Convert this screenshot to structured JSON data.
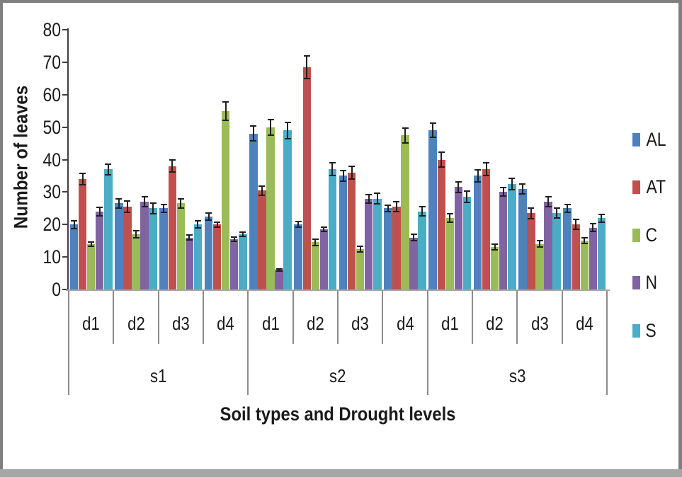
{
  "window": {
    "frame_border_color": "#7f7f7f",
    "frame_bottom_color": "#a6a6a6",
    "background": "#ffffff"
  },
  "chart_data": {
    "type": "bar",
    "title": "",
    "ylabel": "Number of leaves",
    "xlabel": "Soil types and Drought levels",
    "ylim": [
      0,
      80
    ],
    "yticks": [
      0,
      10,
      20,
      30,
      40,
      50,
      60,
      70,
      80
    ],
    "grid": false,
    "legend_position": "right",
    "error_bars": true,
    "error_bar_color": "#1f1f1f",
    "axis_color": "#3f3f3f",
    "baseline_color": "#a6a6a6",
    "divider_color": "#8c8c8c",
    "text_color": "#1a1a1a",
    "soil_labels": [
      "s1",
      "s2",
      "s3"
    ],
    "drought_labels": [
      "d1",
      "d2",
      "d3",
      "d4"
    ],
    "categories": [
      "s1-d1",
      "s1-d2",
      "s1-d3",
      "s1-d4",
      "s2-d1",
      "s2-d2",
      "s2-d3",
      "s2-d4",
      "s3-d1",
      "s3-d2",
      "s3-d3",
      "s3-d4"
    ],
    "series": [
      {
        "name": "AL",
        "color": "#4F81BD",
        "values": [
          20,
          26.5,
          25,
          22.5,
          48,
          20,
          35,
          25,
          49,
          35,
          31,
          25
        ],
        "errors": [
          1.2,
          1.4,
          1.2,
          1.1,
          2.3,
          0.9,
          1.6,
          1.0,
          2.2,
          1.8,
          1.5,
          1.2
        ]
      },
      {
        "name": "AT",
        "color": "#C0504D",
        "values": [
          34,
          25.5,
          38,
          20,
          30.5,
          68.5,
          36,
          25.5,
          40,
          37,
          23.5,
          20
        ],
        "errors": [
          1.7,
          1.7,
          1.8,
          0.8,
          1.4,
          3.5,
          2.0,
          1.5,
          2.2,
          2.0,
          1.6,
          1.5
        ]
      },
      {
        "name": "C",
        "color": "#9BBB59",
        "values": [
          14,
          17,
          26.5,
          55,
          50,
          14.5,
          12.5,
          47.5,
          22,
          13,
          14,
          15
        ],
        "errors": [
          0.7,
          1.0,
          1.5,
          2.8,
          2.4,
          1.0,
          0.9,
          2.3,
          1.3,
          0.9,
          1.0,
          0.9
        ]
      },
      {
        "name": "N",
        "color": "#8064A2",
        "values": [
          24,
          27,
          16,
          15.5,
          6,
          18.5,
          28,
          16,
          31.5,
          30,
          27,
          19
        ],
        "errors": [
          1.3,
          1.5,
          0.8,
          0.7,
          0.4,
          0.7,
          1.3,
          1.0,
          1.7,
          1.3,
          1.6,
          1.2
        ]
      },
      {
        "name": "S",
        "color": "#4BACC6",
        "values": [
          37,
          25,
          20,
          17,
          49,
          37,
          28,
          24,
          28.5,
          32.5,
          23.5,
          22
        ],
        "errors": [
          1.6,
          1.7,
          1.1,
          0.6,
          2.5,
          2.0,
          1.6,
          1.4,
          1.8,
          1.8,
          1.5,
          1.2
        ]
      }
    ]
  }
}
